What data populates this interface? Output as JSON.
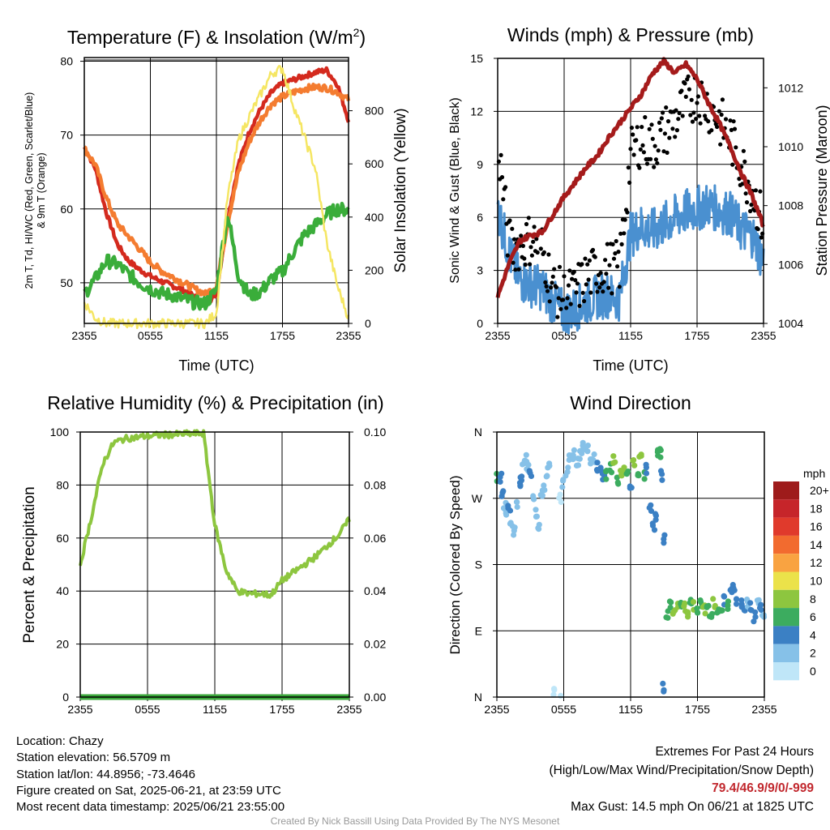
{
  "chart_data": [
    {
      "type": "line",
      "title": "Temperature (F) & Insolation (W/m²)",
      "title_main": "Temperature (F) & Insolation (W/m",
      "title_sup": "2",
      "title_end": ")",
      "xlabel": "Time (UTC)",
      "ylabel_line1": "2m T, Td, HI/WC (Red, Green, Scarlet/Blue)",
      "ylabel_line2": "& 9m T (Orange)",
      "y2label": "Solar Insolation (Yellow)",
      "x_ticks": [
        "2355",
        "0555",
        "1155",
        "1755",
        "2355"
      ],
      "y_ticks": [
        50,
        60,
        70,
        80
      ],
      "y2_ticks": [
        0,
        200,
        400,
        600,
        800
      ],
      "ylim": [
        44.5,
        80.5
      ],
      "y2lim": [
        0,
        1000
      ],
      "x_hours": [
        0,
        1,
        2,
        3,
        4,
        5,
        6,
        7,
        8,
        9,
        10,
        11,
        12,
        13,
        14,
        15,
        16,
        17,
        18,
        19,
        20,
        21,
        22,
        23,
        24
      ],
      "series": [
        {
          "name": "2m T",
          "color": "#d42a1e",
          "axis": "left",
          "values": [
            68.4,
            65.5,
            59.5,
            55.2,
            53.0,
            51.8,
            50.9,
            50.2,
            49.6,
            49.0,
            48.2,
            47.1,
            48.5,
            58.5,
            66.0,
            70.5,
            73.5,
            75.8,
            77.0,
            77.5,
            78.0,
            78.5,
            78.8,
            76.8,
            72.0
          ]
        },
        {
          "name": "9m T",
          "color": "#f47c30",
          "axis": "left",
          "values": [
            68.2,
            66.0,
            61.5,
            58.0,
            56.3,
            54.6,
            52.8,
            51.6,
            50.8,
            50.0,
            49.2,
            48.5,
            49.5,
            58.0,
            65.0,
            69.2,
            72.0,
            74.2,
            75.2,
            75.8,
            76.3,
            76.5,
            76.4,
            75.8,
            74.8
          ]
        },
        {
          "name": "2m Td",
          "color": "#3aad3a",
          "axis": "left",
          "values": [
            48.5,
            50.5,
            53.0,
            52.5,
            51.2,
            50.0,
            49.2,
            48.6,
            48.3,
            47.8,
            47.3,
            47.2,
            49.0,
            59.5,
            51.0,
            48.2,
            48.8,
            50.5,
            51.5,
            54.2,
            56.5,
            57.8,
            59.2,
            60.0,
            59.8
          ]
        },
        {
          "name": "Solar Insolation",
          "color": "#f5e663",
          "axis": "right",
          "values": [
            80,
            20,
            0,
            0,
            0,
            0,
            0,
            0,
            0,
            0,
            0,
            0,
            40,
            470,
            690,
            780,
            860,
            940,
            960,
            820,
            700,
            580,
            310,
            140,
            20
          ]
        }
      ]
    },
    {
      "type": "line",
      "title": "Winds (mph) & Pressure (mb)",
      "xlabel": "Time (UTC)",
      "ylabel": "Sonic Wind & Gust (Blue, Black)",
      "y2label": "Station Pressure (Maroon)",
      "x_ticks": [
        "2355",
        "0555",
        "1155",
        "1755",
        "2355"
      ],
      "y_ticks": [
        0,
        3,
        6,
        9,
        12,
        15
      ],
      "y2_ticks": [
        1004,
        1006,
        1008,
        1010,
        1012
      ],
      "ylim": [
        0,
        15
      ],
      "y2lim": [
        1004,
        1013
      ],
      "x_hours": [
        0,
        1,
        2,
        3,
        4,
        5,
        6,
        7,
        8,
        9,
        10,
        11,
        12,
        13,
        14,
        15,
        16,
        17,
        18,
        19,
        20,
        21,
        22,
        23,
        24
      ],
      "series": [
        {
          "name": "Sonic Wind",
          "color": "#4a90d0",
          "axis": "left",
          "values": [
            6.5,
            4.0,
            2.5,
            2.2,
            2.0,
            1.2,
            0.6,
            0.8,
            1.2,
            1.5,
            1.6,
            1.4,
            5.0,
            5.5,
            5.2,
            5.6,
            6.0,
            6.3,
            6.5,
            6.7,
            6.4,
            6.2,
            5.3,
            5.0,
            3.5
          ]
        },
        {
          "name": "Wind Gust",
          "color": "#000000",
          "axis": "left",
          "values": [
            10.5,
            4.5,
            4.4,
            4.8,
            4.2,
            2.0,
            1.5,
            1.8,
            2.6,
            3.0,
            3.2,
            3.2,
            9.5,
            10.5,
            10.0,
            10.8,
            11.5,
            12.5,
            13.0,
            12.3,
            11.5,
            10.5,
            9.0,
            7.5,
            5.5
          ]
        },
        {
          "name": "Station Pressure",
          "color": "#a51b1b",
          "axis": "right",
          "values": [
            1004.9,
            1006.0,
            1006.8,
            1007.0,
            1007.1,
            1007.7,
            1008.3,
            1008.8,
            1009.3,
            1009.7,
            1010.3,
            1010.8,
            1011.3,
            1011.8,
            1012.5,
            1012.9,
            1012.5,
            1012.8,
            1012.3,
            1011.5,
            1010.8,
            1010.0,
            1009.1,
            1008.3,
            1007.3
          ]
        }
      ]
    },
    {
      "type": "line",
      "title": "Relative Humidity (%) & Precipitation (in)",
      "xlabel": "",
      "ylabel": "Percent & Precipitation",
      "x_ticks": [
        "2355",
        "0555",
        "1155",
        "1755",
        "2355"
      ],
      "y_ticks": [
        0,
        20,
        40,
        60,
        80,
        100
      ],
      "y2_ticks": [
        "0.00",
        "0.02",
        "0.04",
        "0.06",
        "0.08",
        "0.10"
      ],
      "ylim": [
        0,
        100
      ],
      "y2lim": [
        0,
        0.1
      ],
      "x_hours": [
        0,
        1,
        2,
        3,
        4,
        5,
        6,
        7,
        8,
        9,
        10,
        11,
        12,
        13,
        14,
        15,
        16,
        17,
        18,
        19,
        20,
        21,
        22,
        23,
        24
      ],
      "series": [
        {
          "name": "Relative Humidity",
          "color": "#8dc63f",
          "axis": "left",
          "values": [
            50,
            68,
            88,
            96,
            97.5,
            98,
            98.5,
            98.8,
            99,
            99.2,
            99.4,
            99.5,
            65,
            48,
            40,
            39,
            39,
            38.5,
            44,
            47,
            50,
            53,
            57,
            61,
            67
          ]
        },
        {
          "name": "Precipitation",
          "color": "#3aa63a",
          "axis": "right",
          "values": [
            0,
            0,
            0,
            0,
            0,
            0,
            0,
            0,
            0,
            0,
            0,
            0,
            0,
            0,
            0,
            0,
            0,
            0,
            0,
            0,
            0,
            0,
            0,
            0,
            0
          ]
        }
      ]
    },
    {
      "type": "scatter",
      "title": "Wind Direction",
      "ylabel": "Direction (Colored By Speed)",
      "x_ticks": [
        "2355",
        "0555",
        "1155",
        "1755",
        "2355"
      ],
      "y_ticks": [
        "N",
        "E",
        "S",
        "W",
        "N"
      ],
      "ylim": [
        0,
        360
      ],
      "legend_title": "mph",
      "legend_labels": [
        "20+",
        "18",
        "16",
        "14",
        "12",
        "10",
        "8",
        "6",
        "4",
        "2",
        "0"
      ],
      "legend_colors": [
        "#9e1b1b",
        "#c6252a",
        "#e03a2c",
        "#f26b2f",
        "#f9a341",
        "#ebe24a",
        "#8dc63f",
        "#3cac5f",
        "#3b80c4",
        "#86c1e8",
        "#bfe6f8"
      ],
      "points": [
        [
          0.1,
          300,
          6
        ],
        [
          0.3,
          298,
          4
        ],
        [
          0.5,
          275,
          3
        ],
        [
          0.7,
          262,
          2
        ],
        [
          0.9,
          245,
          2
        ],
        [
          1.1,
          255,
          3
        ],
        [
          1.3,
          238,
          2
        ],
        [
          1.5,
          225,
          1
        ],
        [
          1.8,
          265,
          2
        ],
        [
          2.0,
          285,
          3
        ],
        [
          2.2,
          300,
          3
        ],
        [
          2.4,
          318,
          2
        ],
        [
          2.6,
          322,
          1
        ],
        [
          2.8,
          310,
          2
        ],
        [
          3.0,
          300,
          3
        ],
        [
          3.3,
          275,
          1
        ],
        [
          3.5,
          248,
          1
        ],
        [
          3.7,
          232,
          1
        ],
        [
          4.0,
          268,
          1
        ],
        [
          4.2,
          282,
          1
        ],
        [
          4.4,
          295,
          1
        ],
        [
          4.6,
          312,
          1
        ],
        [
          5.2,
          10,
          0
        ],
        [
          5.6,
          2,
          0
        ],
        [
          5.7,
          270,
          0
        ],
        [
          6.0,
          290,
          1
        ],
        [
          6.3,
          305,
          1
        ],
        [
          6.6,
          322,
          1
        ],
        [
          6.9,
          328,
          1
        ],
        [
          7.2,
          322,
          2
        ],
        [
          7.5,
          330,
          2
        ],
        [
          7.8,
          340,
          1
        ],
        [
          8.1,
          335,
          2
        ],
        [
          8.4,
          320,
          1
        ],
        [
          8.7,
          325,
          2
        ],
        [
          9.0,
          312,
          3
        ],
        [
          9.3,
          305,
          3
        ],
        [
          9.6,
          298,
          4
        ],
        [
          9.9,
          300,
          5
        ],
        [
          10.2,
          312,
          6
        ],
        [
          10.5,
          320,
          7
        ],
        [
          10.8,
          295,
          6
        ],
        [
          11.1,
          300,
          8
        ],
        [
          11.4,
          310,
          7
        ],
        [
          11.7,
          305,
          6
        ],
        [
          12.0,
          290,
          4
        ],
        [
          12.3,
          315,
          8
        ],
        [
          12.6,
          300,
          5
        ],
        [
          12.9,
          325,
          7
        ],
        [
          13.2,
          300,
          6
        ],
        [
          13.5,
          310,
          4
        ],
        [
          13.8,
          260,
          3
        ],
        [
          14.1,
          230,
          3
        ],
        [
          14.3,
          245,
          4
        ],
        [
          14.5,
          335,
          5
        ],
        [
          14.7,
          330,
          5
        ],
        [
          14.8,
          300,
          4
        ],
        [
          14.9,
          13,
          4
        ],
        [
          15.0,
          215,
          4
        ],
        [
          15.3,
          112,
          5
        ],
        [
          15.6,
          125,
          6
        ],
        [
          15.9,
          118,
          8
        ],
        [
          16.2,
          122,
          7
        ],
        [
          16.5,
          125,
          6
        ],
        [
          16.8,
          120,
          8
        ],
        [
          17.1,
          115,
          7
        ],
        [
          17.4,
          128,
          6
        ],
        [
          17.7,
          124,
          7
        ],
        [
          18.0,
          118,
          5
        ],
        [
          18.3,
          125,
          6
        ],
        [
          18.6,
          120,
          7
        ],
        [
          18.9,
          127,
          5
        ],
        [
          19.2,
          115,
          6
        ],
        [
          19.5,
          128,
          7
        ],
        [
          19.8,
          122,
          5
        ],
        [
          20.1,
          118,
          6
        ],
        [
          20.4,
          130,
          4
        ],
        [
          20.7,
          125,
          5
        ],
        [
          21.0,
          140,
          3
        ],
        [
          21.3,
          150,
          4
        ],
        [
          21.6,
          130,
          3
        ],
        [
          21.9,
          125,
          4
        ],
        [
          22.2,
          118,
          3
        ],
        [
          22.5,
          130,
          2
        ],
        [
          22.8,
          122,
          4
        ],
        [
          23.1,
          110,
          3
        ],
        [
          23.4,
          128,
          2
        ],
        [
          23.7,
          118,
          3
        ],
        [
          23.9,
          112,
          2
        ]
      ]
    }
  ],
  "footer": {
    "location": "Location: Chazy",
    "elevation": "Station elevation: 56.5709 m",
    "latlon": "Station lat/lon: 44.8956; -73.4646",
    "created": "Figure created on Sat, 2025-06-21, at 23:59 UTC",
    "recent": "Most recent data timestamp: 2025/06/21 23:55:00",
    "extremes_title": "Extremes For Past 24 Hours",
    "extremes_sub": "(High/Low/Max Wind/Precipitation/Snow Depth)",
    "extremes_values": "79.4/46.9/9/0/-999",
    "max_gust": "Max Gust: 14.5 mph On 06/21 at 1825 UTC",
    "credit": "Created By Nick Bassill Using Data Provided By The NYS Mesonet"
  }
}
